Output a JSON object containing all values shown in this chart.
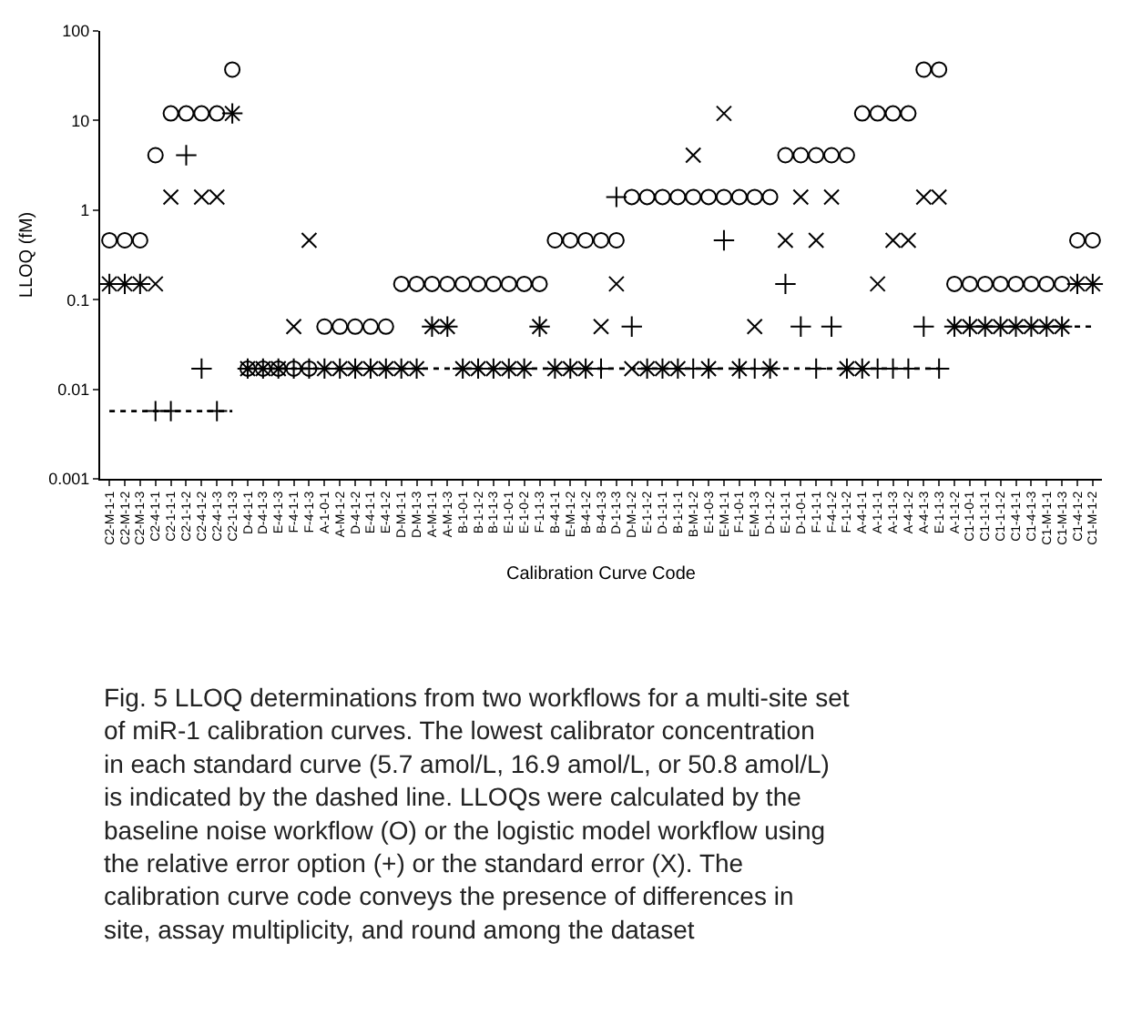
{
  "chart_data": {
    "type": "scatter",
    "xlabel": "Calibration Curve Code",
    "ylabel": "LLOQ (fM)",
    "categories": [
      "C2-M-1-1",
      "C2-M-1-2",
      "C2-M-1-3",
      "C2-4-1-1",
      "C2-1-1-1",
      "C2-1-1-2",
      "C2-4-1-2",
      "C2-4-1-3",
      "C2-1-1-3",
      "D-4-1-1",
      "D-4-1-3",
      "E-4-1-3",
      "F-4-1-1",
      "F-4-1-3",
      "A-1-0-1",
      "A-M-1-2",
      "D-4-1-2",
      "E-4-1-1",
      "E-4-1-2",
      "D-M-1-1",
      "D-M-1-3",
      "A-M-1-1",
      "A-M-1-3",
      "B-1-0-1",
      "B-1-1-2",
      "B-1-1-3",
      "E-1-0-1",
      "E-1-0-2",
      "F-1-1-3",
      "B-4-1-1",
      "E-M-1-2",
      "B-4-1-2",
      "B-4-1-3",
      "D-1-1-3",
      "D-M-1-2",
      "E-1-1-2",
      "D-1-1-1",
      "B-1-1-1",
      "B-M-1-2",
      "E-1-0-3",
      "E-M-1-1",
      "F-1-0-1",
      "E-M-1-3",
      "D-1-1-2",
      "E-1-1-1",
      "D-1-0-1",
      "F-1-1-1",
      "F-4-1-2",
      "F-1-1-2",
      "A-4-1-1",
      "A-1-1-1",
      "A-1-1-3",
      "A-4-1-2",
      "A-4-1-3",
      "E-1-1-3",
      "A-1-1-2",
      "C1-1-0-1",
      "C1-1-1-1",
      "C1-1-1-2",
      "C1-4-1-1",
      "C1-4-1-3",
      "C1-M-1-1",
      "C1-M-1-3",
      "C1-4-1-2",
      "C1-M-1-2"
    ],
    "series": [
      {
        "marker": "circle",
        "color": "#000000",
        "values": [
          0.46,
          0.46,
          0.46,
          4.1,
          12,
          12,
          12,
          12,
          37,
          0.017,
          0.017,
          0.017,
          0.017,
          0.017,
          0.05,
          0.05,
          0.05,
          0.05,
          0.05,
          0.15,
          0.15,
          0.15,
          0.15,
          0.15,
          0.15,
          0.15,
          0.15,
          0.15,
          0.15,
          0.46,
          0.46,
          0.46,
          0.46,
          0.46,
          1.4,
          1.4,
          1.4,
          1.4,
          1.4,
          1.4,
          1.4,
          1.4,
          1.4,
          1.4,
          4.1,
          4.1,
          4.1,
          4.1,
          4.1,
          12,
          12,
          12,
          12,
          37,
          37,
          0.15,
          0.15,
          0.15,
          0.15,
          0.15,
          0.15,
          0.15,
          0.15,
          0.46,
          0.46
        ]
      },
      {
        "marker": "cross",
        "color": "#000000",
        "values": [
          0.15,
          0.15,
          0.15,
          0.0057,
          0.0057,
          4.1,
          0.017,
          0.0057,
          12,
          0.017,
          0.017,
          0.017,
          0.017,
          0.017,
          0.017,
          0.017,
          0.017,
          0.017,
          0.017,
          0.017,
          0.017,
          0.05,
          0.05,
          0.017,
          0.017,
          0.017,
          0.017,
          0.017,
          0.05,
          0.017,
          0.017,
          0.017,
          0.017,
          1.4,
          0.05,
          0.017,
          0.017,
          0.017,
          0.017,
          0.017,
          0.46,
          0.017,
          0.017,
          0.017,
          0.15,
          0.05,
          0.017,
          0.05,
          0.017,
          0.017,
          0.017,
          0.017,
          0.017,
          0.05,
          0.017,
          0.05,
          0.05,
          0.05,
          0.05,
          0.05,
          0.05,
          0.05,
          0.05,
          0.15,
          0.15
        ]
      },
      {
        "marker": "x",
        "color": "#000000",
        "values": [
          0.15,
          0.15,
          0.15,
          0.15,
          1.4,
          null,
          1.4,
          1.4,
          12,
          0.017,
          0.017,
          0.017,
          0.05,
          0.46,
          0.017,
          0.017,
          0.017,
          0.017,
          0.017,
          0.017,
          0.017,
          0.05,
          0.05,
          0.017,
          0.017,
          0.017,
          0.017,
          0.017,
          0.05,
          0.017,
          0.017,
          0.017,
          0.05,
          0.15,
          0.017,
          0.017,
          0.017,
          0.017,
          4.1,
          0.017,
          12,
          0.017,
          0.05,
          0.017,
          0.46,
          1.4,
          0.46,
          1.4,
          0.017,
          0.017,
          0.15,
          0.46,
          0.46,
          1.4,
          1.4,
          0.05,
          0.05,
          0.05,
          0.05,
          0.05,
          0.05,
          0.05,
          0.05,
          0.15,
          0.15
        ]
      },
      {
        "type": "line",
        "marker": "none",
        "line_style": "dotted",
        "color": "#000000",
        "values": [
          0.0057,
          0.0057,
          0.0057,
          0.0057,
          0.0057,
          0.0057,
          0.0057,
          0.0057,
          0.0057,
          null,
          null,
          null,
          null,
          null,
          null,
          null,
          null,
          null,
          null,
          null,
          null,
          null,
          null,
          null,
          null,
          null,
          null,
          null,
          null,
          null,
          null,
          null,
          null,
          null,
          null,
          null,
          null,
          null,
          null,
          null,
          null,
          null,
          null,
          null,
          null,
          null,
          null,
          null,
          null,
          null,
          null,
          null,
          null,
          null,
          null,
          null,
          null,
          null,
          null,
          null,
          null,
          null,
          null,
          null,
          null
        ]
      },
      {
        "type": "line",
        "marker": "none",
        "line_style": "dotted",
        "color": "#000000",
        "values": [
          null,
          null,
          null,
          null,
          null,
          null,
          null,
          null,
          null,
          0.017,
          0.017,
          0.017,
          0.017,
          0.017,
          0.017,
          0.017,
          0.017,
          0.017,
          0.017,
          0.017,
          0.017,
          0.017,
          0.017,
          0.017,
          0.017,
          0.017,
          0.017,
          0.017,
          0.017,
          0.017,
          0.017,
          0.017,
          0.017,
          0.017,
          0.017,
          0.017,
          0.017,
          0.017,
          0.017,
          0.017,
          0.017,
          0.017,
          0.017,
          0.017,
          0.017,
          0.017,
          0.017,
          0.017,
          0.017,
          0.017,
          0.017,
          0.017,
          0.017,
          0.017,
          0.017,
          null,
          null,
          null,
          null,
          null,
          null,
          null,
          null,
          null,
          null
        ]
      },
      {
        "type": "line",
        "marker": "none",
        "line_style": "dotted",
        "color": "#000000",
        "values": [
          null,
          null,
          null,
          null,
          null,
          null,
          null,
          null,
          null,
          null,
          null,
          null,
          null,
          null,
          null,
          null,
          null,
          null,
          null,
          null,
          null,
          null,
          null,
          null,
          null,
          null,
          null,
          null,
          null,
          null,
          null,
          null,
          null,
          null,
          null,
          null,
          null,
          null,
          null,
          null,
          null,
          null,
          null,
          null,
          null,
          null,
          null,
          null,
          null,
          null,
          null,
          null,
          null,
          null,
          null,
          0.05,
          0.05,
          0.05,
          0.05,
          0.05,
          0.05,
          0.05,
          0.05,
          0.05,
          0.05
        ]
      }
    ],
    "log": "y",
    "ylim": [
      0.001,
      100
    ],
    "yticks": [
      0.001,
      0.01,
      0.1,
      1,
      10,
      100
    ],
    "grid": false,
    "legend": false,
    "annotations": [
      "Fig. 5 LLOQ determinations from two workflows for a multi-site set of miR-1 calibration curves. The lowest calibrator concentration in each standard curve (5.7 amol/L, 16.9 amol/L, or 50.8 amol/L) is indicated by the dashed line. LLOQs were calculated by the baseline noise workflow (O) or the logistic model workflow using the relative error option (+) or the standard error (X). The calibration curve code conveys the presence of differences in site, assay multiplicity, and round among the dataset"
    ]
  }
}
